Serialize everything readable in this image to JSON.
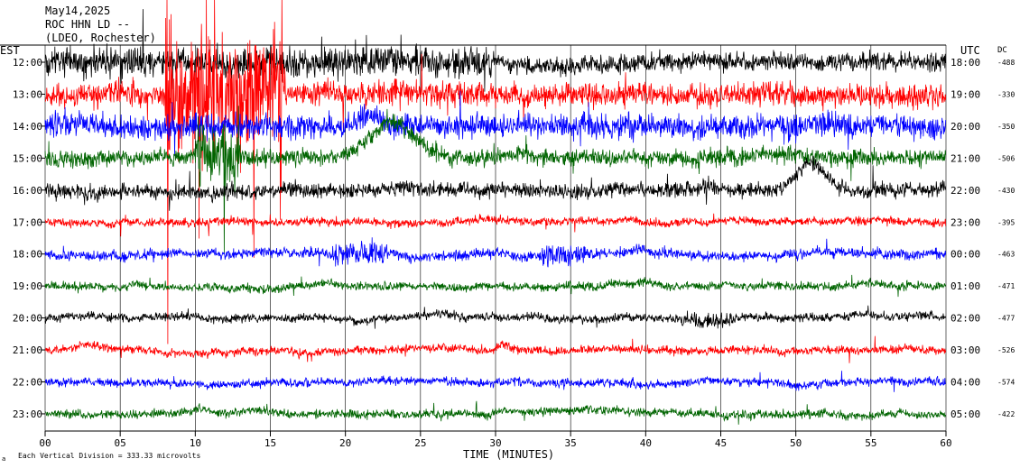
{
  "header": {
    "date": "May14,2025",
    "station": "ROC HHN LD --",
    "location": "(LDEO, Rochester)"
  },
  "axes": {
    "left_zone": "EST",
    "right_zone": "UTC",
    "dc_label": "DC",
    "xlabel": "TIME (MINUTES)",
    "footer_note": "Each Vertical Division =  333.33 microvolts",
    "footer_mark": "a"
  },
  "chart_data": {
    "type": "line",
    "title": "",
    "xlabel": "TIME (MINUTES)",
    "x_ticks": [
      "00",
      "05",
      "10",
      "15",
      "20",
      "25",
      "30",
      "35",
      "40",
      "45",
      "50",
      "55",
      "60"
    ],
    "xlim": [
      0,
      60
    ],
    "grid": true,
    "vertical_division_microvolts": 333.33,
    "rows": [
      {
        "est": "12:00",
        "utc": "18:00",
        "dc": "-488",
        "color": "#000000",
        "amp": 11,
        "burst": [
          [
            0,
            30,
            1.6
          ]
        ],
        "bumps": []
      },
      {
        "est": "13:00",
        "utc": "19:00",
        "dc": "-330",
        "color": "#ff0000",
        "amp": 11,
        "burst": [
          [
            8,
            16,
            5.0
          ],
          [
            0,
            60,
            1.3
          ]
        ],
        "bumps": []
      },
      {
        "est": "14:00",
        "utc": "20:00",
        "dc": "-350",
        "color": "#0000ff",
        "amp": 11,
        "burst": [
          [
            0,
            60,
            1.3
          ]
        ],
        "bumps": [
          [
            21.5,
            -12,
            1.0
          ]
        ]
      },
      {
        "est": "15:00",
        "utc": "21:00",
        "dc": "-506",
        "color": "#006400",
        "amp": 10,
        "burst": [
          [
            10,
            13,
            4.0
          ]
        ],
        "bumps": [
          [
            23.0,
            -40,
            2.2
          ]
        ]
      },
      {
        "est": "16:00",
        "utc": "22:00",
        "dc": "-430",
        "color": "#000000",
        "amp": 9,
        "burst": [],
        "bumps": [
          [
            51.0,
            -32,
            1.3
          ]
        ]
      },
      {
        "est": "17:00",
        "utc": "23:00",
        "dc": "-395",
        "color": "#ff0000",
        "amp": 5,
        "burst": [],
        "bumps": []
      },
      {
        "est": "18:00",
        "utc": "00:00",
        "dc": "-463",
        "color": "#0000ff",
        "amp": 6,
        "burst": [
          [
            19,
            23,
            2.5
          ],
          [
            33,
            36,
            2.2
          ]
        ],
        "bumps": []
      },
      {
        "est": "19:00",
        "utc": "01:00",
        "dc": "-471",
        "color": "#006400",
        "amp": 5,
        "burst": [],
        "bumps": []
      },
      {
        "est": "20:00",
        "utc": "02:00",
        "dc": "-477",
        "color": "#000000",
        "amp": 5,
        "burst": [
          [
            42,
            46,
            1.8
          ]
        ],
        "bumps": []
      },
      {
        "est": "21:00",
        "utc": "03:00",
        "dc": "-526",
        "color": "#ff0000",
        "amp": 5,
        "burst": [],
        "bumps": [
          [
            30.5,
            -8,
            0.5
          ]
        ]
      },
      {
        "est": "22:00",
        "utc": "04:00",
        "dc": "-574",
        "color": "#0000ff",
        "amp": 5,
        "burst": [],
        "bumps": []
      },
      {
        "est": "23:00",
        "utc": "05:00",
        "dc": "-422",
        "color": "#006400",
        "amp": 5,
        "burst": [],
        "bumps": []
      }
    ]
  }
}
